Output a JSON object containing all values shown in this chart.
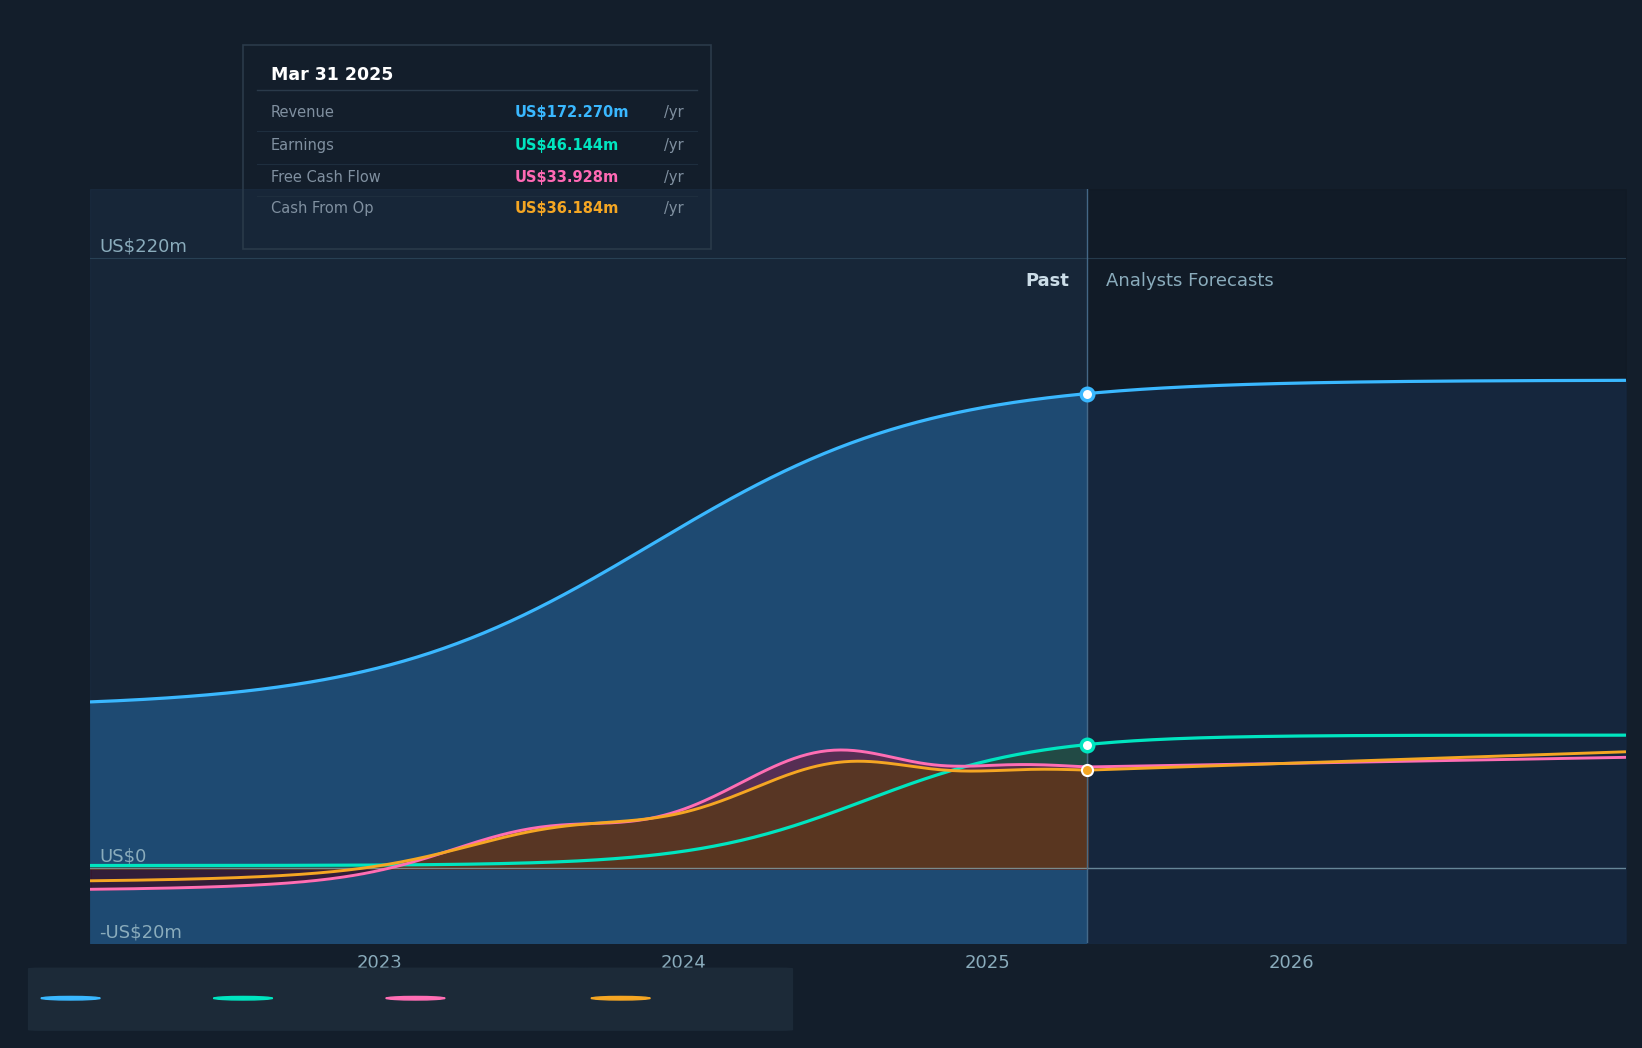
{
  "bg_color": "#131e2b",
  "plot_bg_past": "#152030",
  "plot_bg_future": "#111b28",
  "ylabel_top": "US$220m",
  "ylabel_zero": "US$0",
  "ylabel_neg": "-US$20m",
  "divider_x": 2025.33,
  "past_label": "Past",
  "forecast_label": "Analysts Forecasts",
  "tooltip_date": "Mar 31 2025",
  "tooltip_rows": [
    {
      "label": "Revenue",
      "value": "US$172.270m",
      "color": "#3ab8ff"
    },
    {
      "label": "Earnings",
      "value": "US$46.144m",
      "color": "#00e5c0"
    },
    {
      "label": "Free Cash Flow",
      "value": "US$33.928m",
      "color": "#ff69b4"
    },
    {
      "label": "Cash From Op",
      "value": "US$36.184m",
      "color": "#f5a623"
    }
  ],
  "revenue_color": "#3ab8ff",
  "earnings_color": "#00e5c0",
  "fcf_color": "#ff6eb4",
  "cashop_color": "#f5a623",
  "ylim": [
    -27,
    245
  ],
  "xlim": [
    2022.05,
    2027.1
  ],
  "x_ticks": [
    2023,
    2024,
    2025,
    2026
  ],
  "x_tick_labels": [
    "2023",
    "2024",
    "2025",
    "2026"
  ]
}
